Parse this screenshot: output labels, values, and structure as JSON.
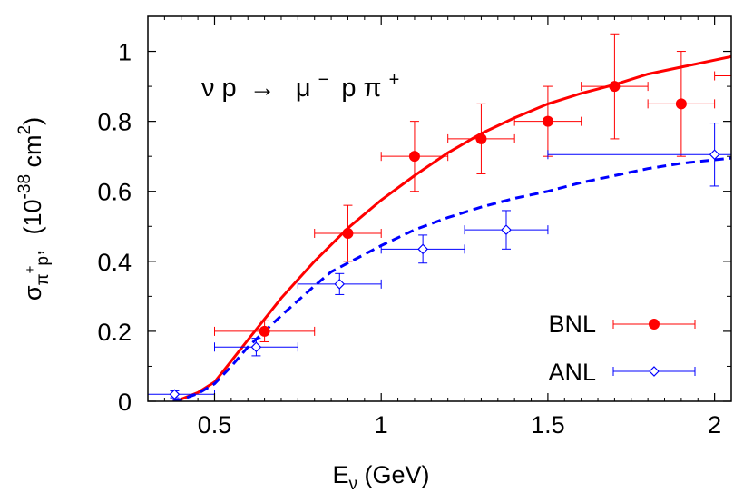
{
  "chart_data": {
    "type": "scatter",
    "annotation": {
      "parts": [
        "ν p",
        "→",
        "μ",
        "−",
        "p π",
        "+"
      ]
    },
    "xlabel": {
      "base": "E",
      "sub": "ν",
      "rest": " (GeV)"
    },
    "ylabel": {
      "sigma": "σ",
      "sub_pi": "π",
      "sup_plus": "+",
      "sub_p": "p",
      "comma": ",",
      "unit_open": "(10",
      "exp": "-38",
      "unit_mid": " cm",
      "exp2": "2",
      "unit_close": ")"
    },
    "xlim": [
      0.3,
      2.05
    ],
    "ylim": [
      0,
      1.1
    ],
    "x_ticks": [
      0.5,
      1,
      1.5,
      2
    ],
    "x_tick_labels": [
      "0.5",
      "1",
      "1.5",
      "2"
    ],
    "y_ticks": [
      0,
      0.2,
      0.4,
      0.6,
      0.8,
      1
    ],
    "y_tick_labels": [
      "0",
      "0.2",
      "0.4",
      "0.6",
      "0.8",
      "1"
    ],
    "grid": false,
    "legend_position": "bottom-right",
    "series": [
      {
        "name": "BNL",
        "color": "#ff0000",
        "marker": "filled-circle",
        "points": [
          {
            "x": 0.65,
            "y": 0.2,
            "xerr": 0.15,
            "yerr": 0.03
          },
          {
            "x": 0.9,
            "y": 0.48,
            "xerr": 0.1,
            "yerr": 0.08
          },
          {
            "x": 1.1,
            "y": 0.7,
            "xerr": 0.1,
            "yerr": 0.1
          },
          {
            "x": 1.3,
            "y": 0.75,
            "xerr": 0.1,
            "yerr": 0.1
          },
          {
            "x": 1.5,
            "y": 0.8,
            "xerr": 0.1,
            "yerr": 0.1
          },
          {
            "x": 1.7,
            "y": 0.9,
            "xerr": 0.1,
            "yerr": 0.15
          },
          {
            "x": 1.9,
            "y": 0.85,
            "xerr": 0.1,
            "yerr": 0.15
          },
          {
            "x": 2.1,
            "y": 0.93,
            "xerr": 0.1,
            "yerr": 0.0
          }
        ]
      },
      {
        "name": "ANL",
        "color": "#0000ff",
        "marker": "open-diamond",
        "points": [
          {
            "x": 0.38,
            "y": 0.02,
            "xerr": 0.12,
            "yerr": 0.01
          },
          {
            "x": 0.625,
            "y": 0.155,
            "xerr": 0.125,
            "yerr": 0.025
          },
          {
            "x": 0.875,
            "y": 0.335,
            "xerr": 0.125,
            "yerr": 0.03
          },
          {
            "x": 1.125,
            "y": 0.435,
            "xerr": 0.125,
            "yerr": 0.04
          },
          {
            "x": 1.375,
            "y": 0.49,
            "xerr": 0.125,
            "yerr": 0.055
          },
          {
            "x": 2.0,
            "y": 0.705,
            "xerr": 0.5,
            "yerr": 0.09
          }
        ]
      }
    ],
    "curves": [
      {
        "style": "solid",
        "color": "#ff0000",
        "points": [
          [
            0.375,
            0
          ],
          [
            0.4,
            0.006
          ],
          [
            0.45,
            0.025
          ],
          [
            0.5,
            0.055
          ],
          [
            0.55,
            0.115
          ],
          [
            0.6,
            0.175
          ],
          [
            0.65,
            0.235
          ],
          [
            0.7,
            0.295
          ],
          [
            0.8,
            0.4
          ],
          [
            0.9,
            0.495
          ],
          [
            1.0,
            0.575
          ],
          [
            1.1,
            0.645
          ],
          [
            1.2,
            0.71
          ],
          [
            1.3,
            0.765
          ],
          [
            1.4,
            0.81
          ],
          [
            1.5,
            0.85
          ],
          [
            1.6,
            0.88
          ],
          [
            1.7,
            0.905
          ],
          [
            1.8,
            0.935
          ],
          [
            1.9,
            0.955
          ],
          [
            2.0,
            0.975
          ],
          [
            2.05,
            0.985
          ]
        ]
      },
      {
        "style": "dashed",
        "color": "#0000ff",
        "points": [
          [
            0.375,
            0
          ],
          [
            0.4,
            0.005
          ],
          [
            0.45,
            0.022
          ],
          [
            0.5,
            0.05
          ],
          [
            0.55,
            0.1
          ],
          [
            0.6,
            0.155
          ],
          [
            0.65,
            0.2
          ],
          [
            0.7,
            0.245
          ],
          [
            0.8,
            0.33
          ],
          [
            0.85,
            0.37
          ],
          [
            0.9,
            0.395
          ],
          [
            1.0,
            0.445
          ],
          [
            1.1,
            0.49
          ],
          [
            1.2,
            0.525
          ],
          [
            1.3,
            0.555
          ],
          [
            1.4,
            0.58
          ],
          [
            1.5,
            0.6
          ],
          [
            1.6,
            0.625
          ],
          [
            1.7,
            0.645
          ],
          [
            1.8,
            0.665
          ],
          [
            1.9,
            0.68
          ],
          [
            2.0,
            0.69
          ],
          [
            2.05,
            0.695
          ]
        ]
      }
    ]
  }
}
